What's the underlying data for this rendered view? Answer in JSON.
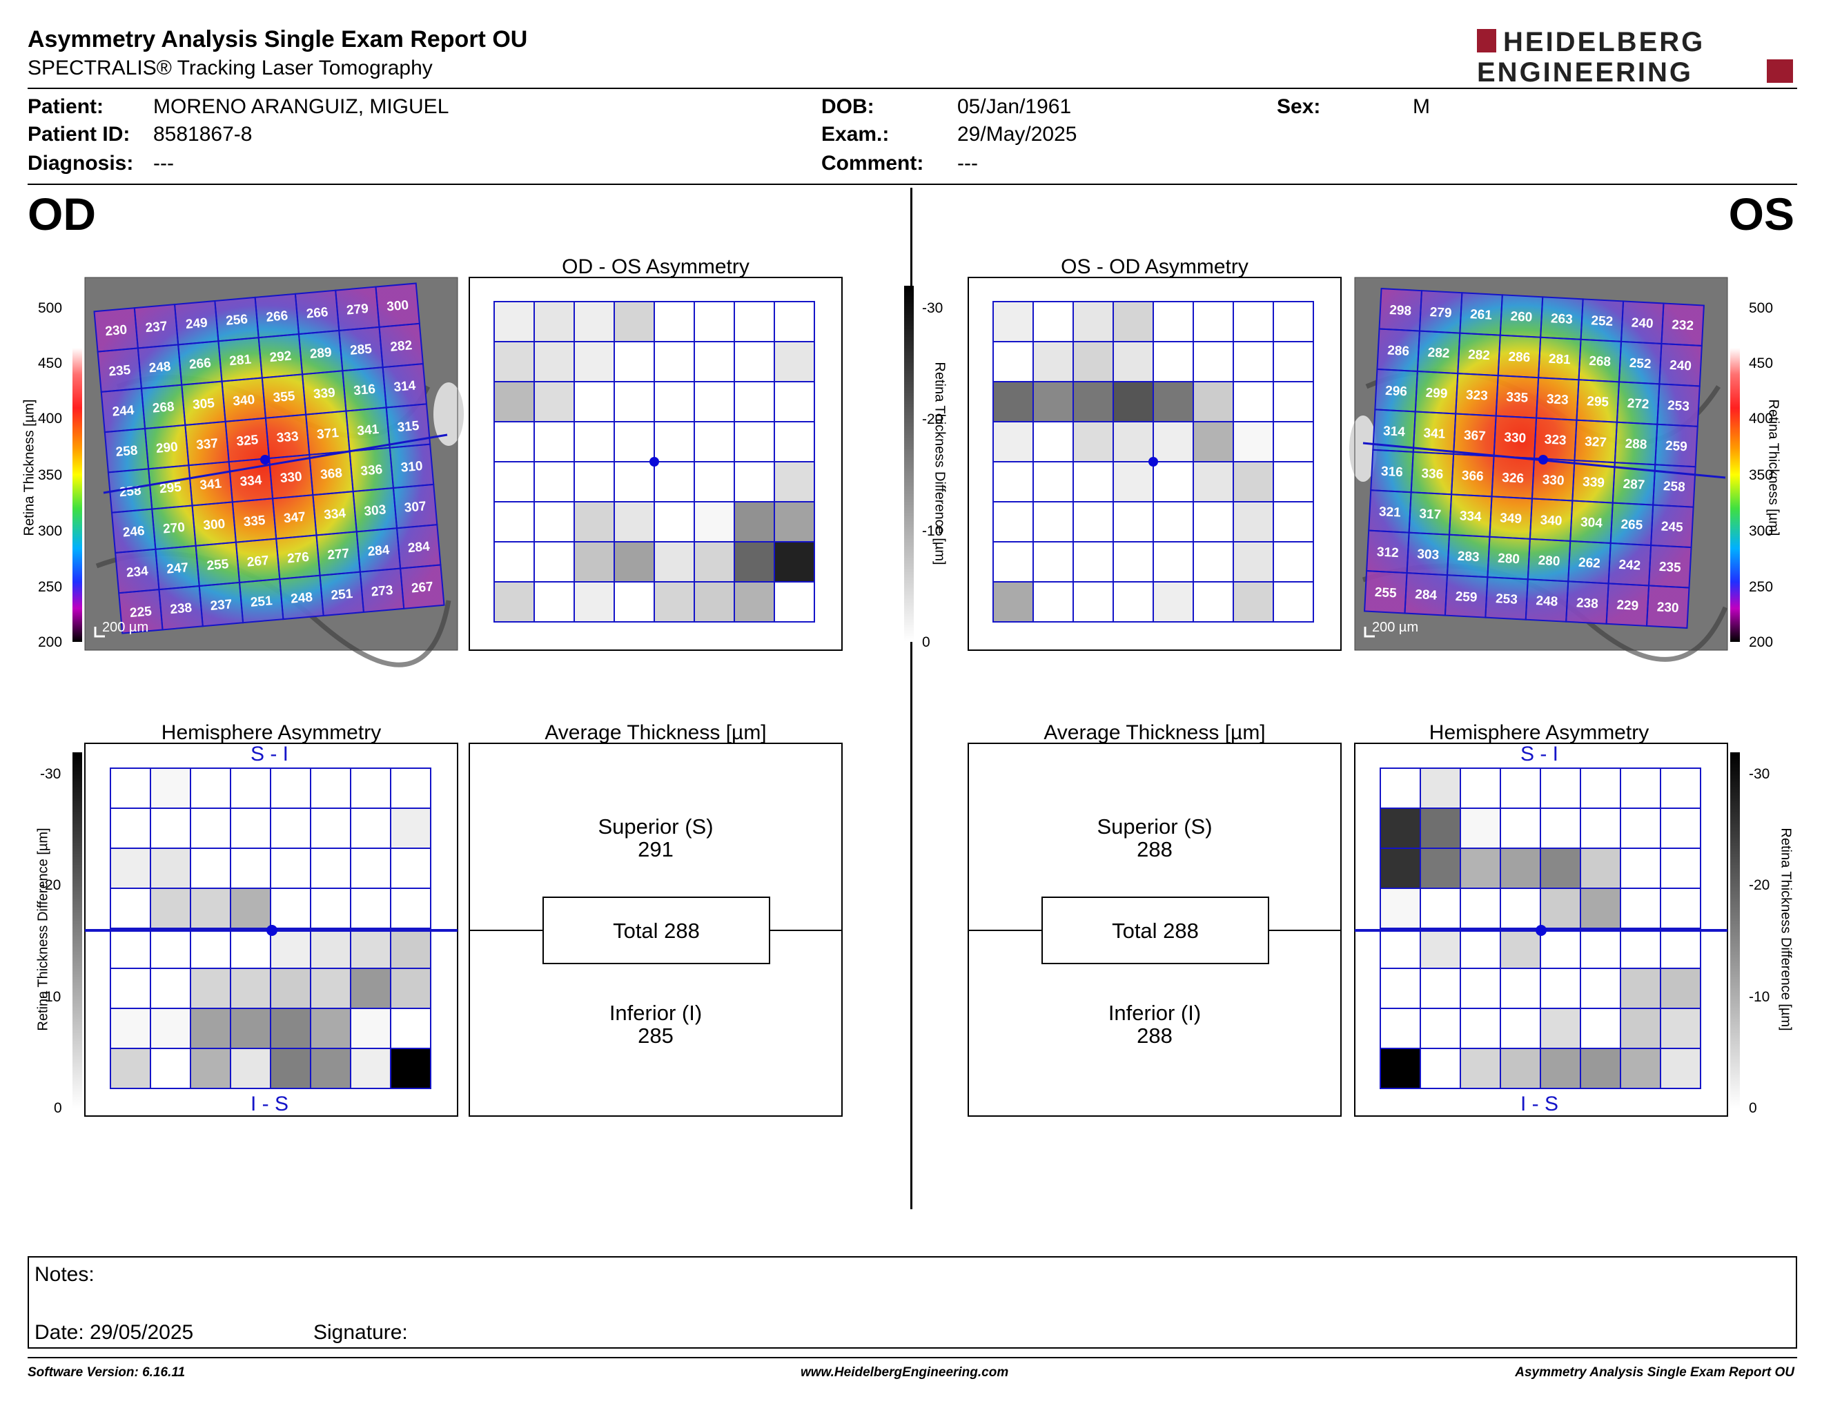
{
  "header": {
    "title": "Asymmetry Analysis Single Exam Report OU",
    "subtitle": "SPECTRALIS® Tracking Laser Tomography",
    "logo": {
      "line1": "HEIDELBERG",
      "line2": "ENGINEERING",
      "accent": "#9b1b2e"
    }
  },
  "patient": {
    "name_label": "Patient:",
    "name": "MORENO ARANGUIZ, MIGUEL",
    "id_label": "Patient ID:",
    "id": "8581867-8",
    "diagnosis_label": "Diagnosis:",
    "diagnosis": "---",
    "dob_label": "DOB:",
    "dob": "05/Jan/1961",
    "exam_label": "Exam.:",
    "exam": "29/May/2025",
    "comment_label": "Comment:",
    "comment": "---",
    "sex_label": "Sex:",
    "sex": "M"
  },
  "eyes": {
    "od": "OD",
    "os": "OS"
  },
  "titles": {
    "od_os": "OD - OS Asymmetry",
    "os_od": "OS - OD Asymmetry",
    "hemi": "Hemisphere Asymmetry",
    "avg": "Average Thickness [µm]"
  },
  "scales": {
    "thickness_label": "Retina  Thickness [µm]",
    "thickness_ticks": [
      "500",
      "450",
      "400",
      "350",
      "300",
      "250",
      "200"
    ],
    "diff_label": "Retina Thickness Difference [µm]",
    "diff_ticks": [
      "-30",
      "-20",
      "-10",
      "0"
    ]
  },
  "scale_bar": "200 µm",
  "hemi_labels": {
    "top": "S - I",
    "bottom": "I - S"
  },
  "avg": {
    "od": {
      "sup_label": "Superior (S)",
      "sup": "291",
      "total": "Total 288",
      "inf_label": "Inferior (I)",
      "inf": "285"
    },
    "os": {
      "sup_label": "Superior (S)",
      "sup": "288",
      "total": "Total 288",
      "inf_label": "Inferior (I)",
      "inf": "288"
    }
  },
  "grids": {
    "od_thickness": [
      [
        230,
        237,
        249,
        256,
        266,
        266,
        279,
        300
      ],
      [
        235,
        248,
        266,
        281,
        292,
        289,
        285,
        282
      ],
      [
        244,
        268,
        305,
        340,
        355,
        339,
        316,
        314
      ],
      [
        258,
        290,
        337,
        325,
        333,
        371,
        341,
        315
      ],
      [
        258,
        295,
        341,
        334,
        330,
        368,
        336,
        310
      ],
      [
        246,
        270,
        300,
        335,
        347,
        334,
        303,
        307
      ],
      [
        234,
        247,
        255,
        267,
        276,
        277,
        284,
        284
      ],
      [
        225,
        238,
        237,
        251,
        248,
        251,
        273,
        267
      ]
    ],
    "os_thickness": [
      [
        298,
        279,
        261,
        260,
        263,
        252,
        240,
        232
      ],
      [
        286,
        282,
        282,
        286,
        281,
        268,
        252,
        240
      ],
      [
        296,
        299,
        323,
        335,
        323,
        295,
        272,
        253
      ],
      [
        314,
        341,
        367,
        330,
        323,
        327,
        288,
        259
      ],
      [
        316,
        336,
        366,
        326,
        330,
        339,
        287,
        258
      ],
      [
        321,
        317,
        334,
        349,
        340,
        304,
        265,
        245
      ],
      [
        312,
        303,
        283,
        280,
        280,
        262,
        242,
        235
      ],
      [
        255,
        284,
        259,
        253,
        248,
        238,
        229,
        230
      ]
    ],
    "od_os_asym": [
      [
        2,
        3,
        2,
        5,
        0,
        0,
        0,
        0
      ],
      [
        4,
        3,
        2,
        0,
        0,
        0,
        0,
        3
      ],
      [
        8,
        4,
        0,
        0,
        0,
        0,
        0,
        0
      ],
      [
        0,
        0,
        0,
        0,
        0,
        0,
        0,
        0
      ],
      [
        0,
        0,
        0,
        0,
        0,
        0,
        0,
        4
      ],
      [
        0,
        0,
        5,
        3,
        0,
        1,
        13,
        11
      ],
      [
        0,
        0,
        7,
        11,
        3,
        5,
        18,
        26
      ],
      [
        5,
        0,
        2,
        0,
        5,
        6,
        9,
        0
      ]
    ],
    "os_od_asym": [
      [
        2,
        0,
        3,
        5,
        0,
        0,
        0,
        0
      ],
      [
        0,
        3,
        5,
        3,
        0,
        0,
        0,
        0
      ],
      [
        17,
        14,
        16,
        20,
        16,
        6,
        0,
        0
      ],
      [
        2,
        0,
        4,
        3,
        2,
        9,
        1,
        0
      ],
      [
        0,
        0,
        0,
        2,
        0,
        3,
        5,
        0
      ],
      [
        0,
        0,
        0,
        0,
        0,
        0,
        3,
        0
      ],
      [
        0,
        0,
        0,
        0,
        0,
        0,
        3,
        0
      ],
      [
        10,
        0,
        0,
        0,
        2,
        0,
        5,
        0
      ]
    ],
    "od_hemi": [
      [
        0,
        1,
        0,
        0,
        0,
        0,
        0,
        0
      ],
      [
        0,
        0,
        0,
        0,
        0,
        0,
        0,
        2
      ],
      [
        2,
        3,
        0,
        0,
        0,
        0,
        0,
        0
      ],
      [
        0,
        5,
        5,
        9,
        0,
        0,
        0,
        0
      ],
      [
        0,
        0,
        0,
        0,
        2,
        3,
        4,
        6
      ],
      [
        0,
        0,
        5,
        5,
        6,
        5,
        12,
        6
      ],
      [
        1,
        1,
        11,
        12,
        14,
        10,
        1,
        0
      ],
      [
        5,
        0,
        9,
        3,
        15,
        13,
        2,
        30
      ]
    ],
    "os_hemi": [
      [
        0,
        3,
        0,
        0,
        0,
        0,
        0,
        0
      ],
      [
        24,
        17,
        1,
        0,
        0,
        0,
        0,
        0
      ],
      [
        24,
        16,
        9,
        11,
        14,
        6,
        0,
        0
      ],
      [
        1,
        0,
        0,
        0,
        6,
        10,
        0,
        0
      ],
      [
        0,
        3,
        0,
        5,
        0,
        0,
        0,
        0
      ],
      [
        0,
        0,
        0,
        0,
        0,
        0,
        6,
        7
      ],
      [
        0,
        0,
        0,
        0,
        4,
        0,
        6,
        4
      ],
      [
        30,
        0,
        5,
        7,
        11,
        12,
        9,
        3
      ]
    ]
  },
  "notes": {
    "notes_label": "Notes:",
    "date_label": "Date: 29/05/2025",
    "signature_label": "Signature:"
  },
  "footer": {
    "version": "Software Version: 6.16.11",
    "url": "www.HeidelbergEngineering.com",
    "report": "Asymmetry Analysis Single Exam Report OU"
  },
  "colors": {
    "grid_blue": "#1414c8",
    "fovea_dot": "#0a0ad8"
  }
}
